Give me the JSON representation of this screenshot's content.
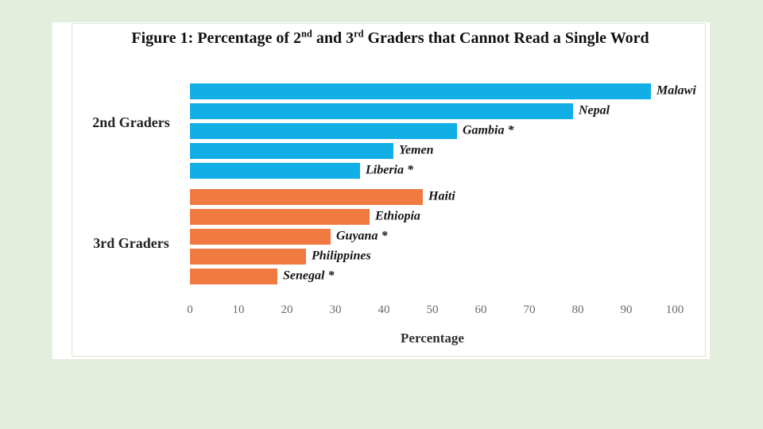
{
  "colors": {
    "page_background": "#e3efdc",
    "panel_background": "#ffffff",
    "grade2_bar": "#12aee6",
    "grade3_bar": "#ef7b42"
  },
  "title": {
    "parts": [
      {
        "t": "Figure 1: Percentage of 2"
      },
      {
        "t": "nd"
      },
      {
        "t": " and 3"
      },
      {
        "t": "rd"
      },
      {
        "t": " Graders that Cannot Read a Single Word"
      }
    ]
  },
  "chart_data": {
    "type": "bar",
    "orientation": "horizontal",
    "title": "Figure 1: Percentage of 2nd and 3rd Graders that Cannot Read a Single Word",
    "xlabel": "Percentage",
    "xlim": [
      0,
      100
    ],
    "x_ticks": [
      0,
      10,
      20,
      30,
      40,
      50,
      60,
      70,
      80,
      90,
      100
    ],
    "grid": false,
    "legend": "none",
    "groups": [
      {
        "label": "2nd Graders",
        "color": "#12aee6",
        "bars": [
          {
            "country": "Malawi",
            "value": 95
          },
          {
            "country": "Nepal",
            "value": 79
          },
          {
            "country": "Gambia *",
            "value": 55
          },
          {
            "country": "Yemen",
            "value": 42
          },
          {
            "country": "Liberia *",
            "value": 35
          }
        ]
      },
      {
        "label": "3rd Graders",
        "color": "#ef7b42",
        "bars": [
          {
            "country": "Haiti",
            "value": 48
          },
          {
            "country": "Ethiopia",
            "value": 37
          },
          {
            "country": "Guyana *",
            "value": 29
          },
          {
            "country": "Philippines",
            "value": 24
          },
          {
            "country": "Senegal *",
            "value": 18
          }
        ]
      }
    ]
  }
}
